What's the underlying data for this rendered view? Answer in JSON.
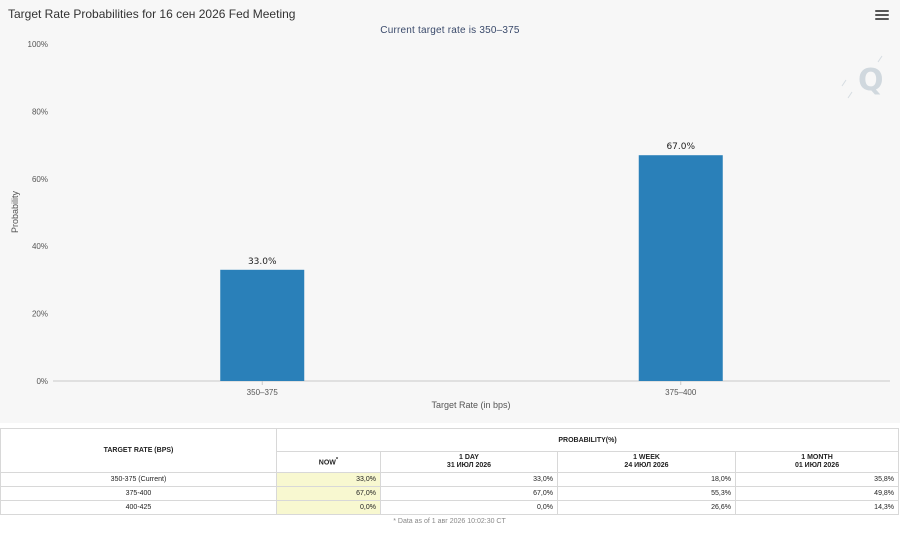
{
  "chart": {
    "title": "Target Rate Probabilities for 16 сен 2026 Fed Meeting",
    "subtitle": "Current target rate is 350–375",
    "menu_icon": "hamburger-menu-icon",
    "watermark_icon": "q-logo-icon",
    "watermark_text": "Q"
  },
  "chart_data": {
    "type": "bar",
    "categories": [
      "350–375",
      "375–400"
    ],
    "values": [
      33.0,
      67.0
    ],
    "data_labels": [
      "33.0%",
      "67.0%"
    ],
    "xlabel": "Target Rate (in bps)",
    "ylabel": "Probability",
    "ylim": [
      0,
      100
    ],
    "yticks": [
      0,
      20,
      40,
      60,
      80,
      100
    ],
    "ytick_labels": [
      "0%",
      "20%",
      "40%",
      "60%",
      "80%",
      "100%"
    ],
    "bar_color": "#2a80b9",
    "grid": false,
    "legend": "none"
  },
  "table": {
    "target_rate_header": "TARGET RATE (BPS)",
    "probability_header": "PROBABILITY(%)",
    "columns": [
      {
        "label": "NOW",
        "marker": "*",
        "sub": ""
      },
      {
        "label": "1 DAY",
        "sub": "31 ИЮЛ 2026"
      },
      {
        "label": "1 WEEK",
        "sub": "24 ИЮЛ 2026"
      },
      {
        "label": "1 MONTH",
        "sub": "01 ИЮЛ 2026"
      }
    ],
    "rows": [
      {
        "rate": "350-375 (Current)",
        "values": [
          "33,0%",
          "33,0%",
          "18,0%",
          "35,8%"
        ]
      },
      {
        "rate": "375-400",
        "values": [
          "67,0%",
          "67,0%",
          "55,3%",
          "49,8%"
        ]
      },
      {
        "rate": "400-425",
        "values": [
          "0,0%",
          "0,0%",
          "26,6%",
          "14,3%"
        ]
      }
    ],
    "footnote": "* Data as of 1 авг 2026 10:02:30 CT",
    "now_highlight_color": "#f8f8d0"
  }
}
